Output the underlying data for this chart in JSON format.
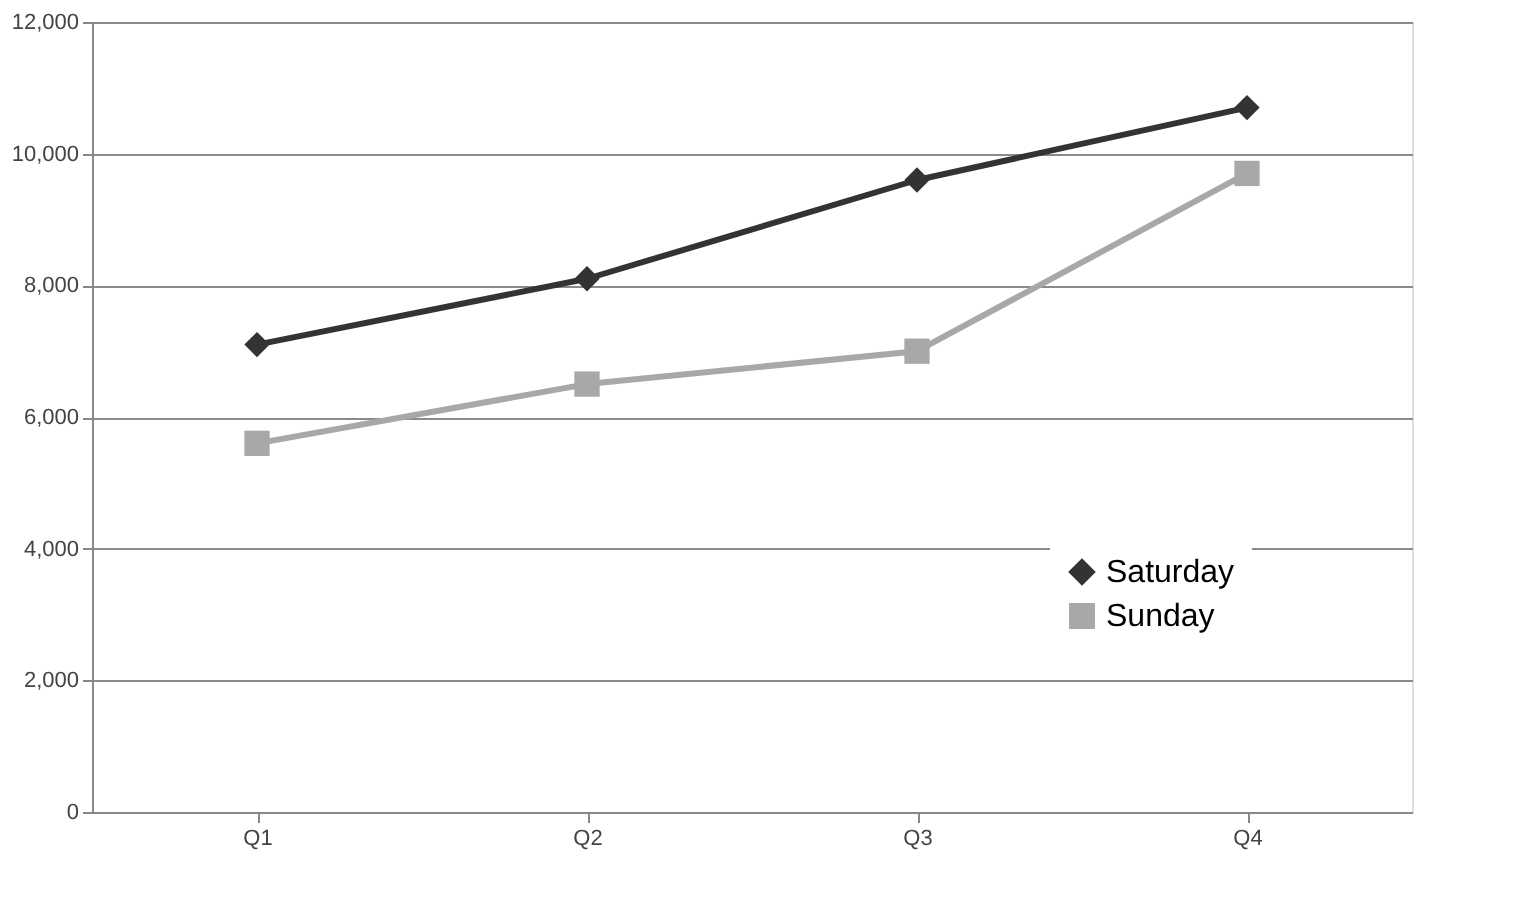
{
  "chart_data": {
    "type": "line",
    "categories": [
      "Q1",
      "Q2",
      "Q3",
      "Q4"
    ],
    "series": [
      {
        "name": "Saturday",
        "color": "#333333",
        "marker": "diamond",
        "values": [
          7100,
          8100,
          9600,
          10700
        ]
      },
      {
        "name": "Sunday",
        "color": "#a8a8a8",
        "marker": "square",
        "values": [
          5600,
          6500,
          7000,
          9700
        ]
      }
    ],
    "ylim": [
      0,
      12000
    ],
    "yticks": [
      0,
      {
        "value": 2000,
        "label": "2,000"
      },
      {
        "value": 4000,
        "label": "4,000"
      },
      {
        "value": 6000,
        "label": "6,000"
      },
      {
        "value": 8000,
        "label": "8,000"
      },
      {
        "value": 10000,
        "label": "10,000"
      },
      {
        "value": 12000,
        "label": "12,000"
      }
    ],
    "grid": "y",
    "legend": "bottom right",
    "line_style": "solid"
  }
}
